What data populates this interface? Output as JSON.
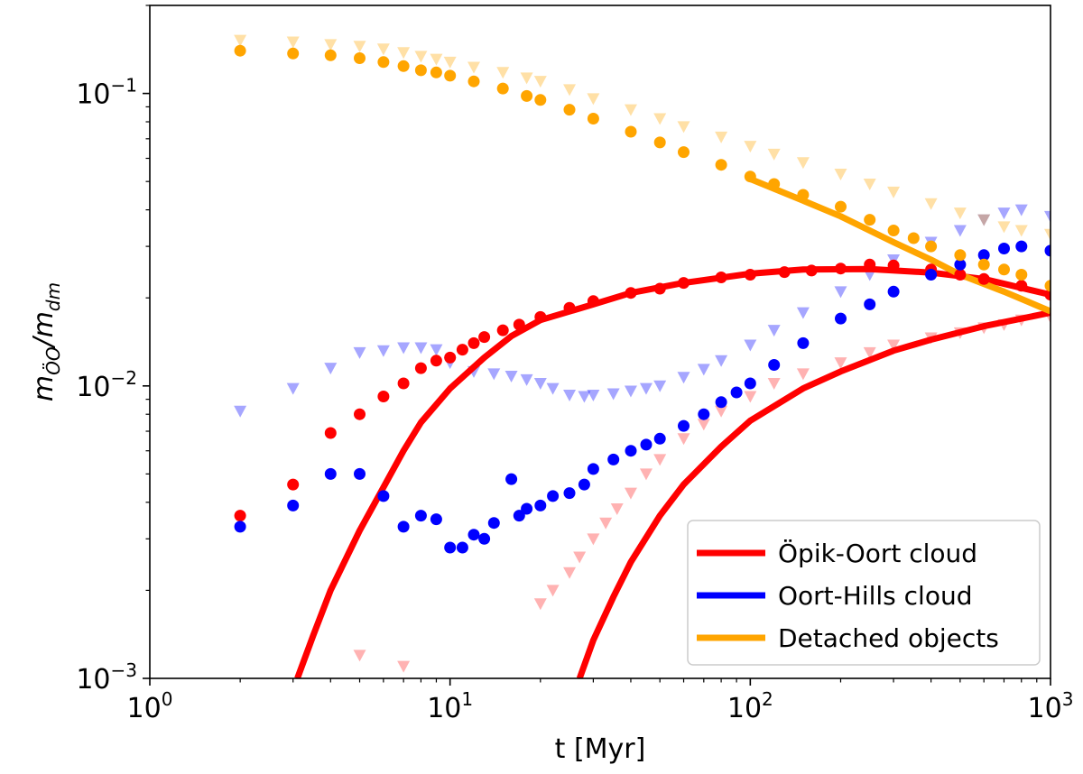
{
  "chart_data": {
    "type": "scatter",
    "xscale": "log",
    "yscale": "log",
    "xlim": [
      1,
      1000
    ],
    "ylim": [
      0.001,
      0.2
    ],
    "xlabel": "t [Myr]",
    "ylabel_main": "m",
    "ylabel_sub_main": "ÖO",
    "ylabel_slash": "/m",
    "ylabel_sub_denominator": "dm",
    "xticks": [
      {
        "value": 1,
        "base": "10",
        "exp": "0"
      },
      {
        "value": 10,
        "base": "10",
        "exp": "1"
      },
      {
        "value": 100,
        "base": "10",
        "exp": "2"
      },
      {
        "value": 1000,
        "base": "10",
        "exp": "3"
      }
    ],
    "yticks": [
      {
        "value": 0.001,
        "base": "10",
        "exp": "−3"
      },
      {
        "value": 0.01,
        "base": "10",
        "exp": "−2"
      },
      {
        "value": 0.1,
        "base": "10",
        "exp": "−1"
      }
    ],
    "legend": {
      "position": "lower-right",
      "entries": [
        {
          "label": "Öpik-Oort cloud",
          "color": "#ff0000"
        },
        {
          "label": "Oort-Hills cloud",
          "color": "#0000ff"
        },
        {
          "label": "Detached objects",
          "color": "#ffa500"
        }
      ]
    },
    "series": [
      {
        "name": "Öpik-Oort cloud fit",
        "kind": "line",
        "color": "#ff0000",
        "x": [
          3.1,
          3.5,
          4,
          5,
          6,
          7,
          8,
          10,
          13,
          16,
          20,
          30,
          40,
          60,
          100,
          150,
          250,
          400,
          600,
          1000
        ],
        "y": [
          0.001,
          0.0014,
          0.002,
          0.0032,
          0.0045,
          0.006,
          0.0075,
          0.0098,
          0.0125,
          0.0148,
          0.0168,
          0.019,
          0.0208,
          0.0225,
          0.0242,
          0.025,
          0.0251,
          0.0244,
          0.0232,
          0.0205
        ]
      },
      {
        "name": "Öpik-Oort cloud late fit",
        "kind": "line",
        "color": "#ff0000",
        "x": [
          27,
          30,
          35,
          40,
          50,
          60,
          80,
          100,
          150,
          200,
          300,
          400,
          600,
          1000
        ],
        "y": [
          0.001,
          0.00135,
          0.0019,
          0.0025,
          0.0036,
          0.0046,
          0.0062,
          0.0076,
          0.0098,
          0.0112,
          0.0132,
          0.0144,
          0.016,
          0.0178
        ]
      },
      {
        "name": "Detached objects fit",
        "kind": "line",
        "color": "#ffa500",
        "x": [
          100,
          150,
          200,
          300,
          400,
          500,
          700,
          1000
        ],
        "y": [
          0.051,
          0.043,
          0.038,
          0.031,
          0.027,
          0.024,
          0.021,
          0.018
        ]
      },
      {
        "name": "Öpik-Oort cloud (circles)",
        "kind": "circle",
        "color": "#ff0000",
        "opacity": 1,
        "x": [
          2,
          3,
          4,
          5,
          6,
          7,
          8,
          9,
          10,
          11,
          12,
          13,
          15,
          17,
          20,
          25,
          30,
          40,
          50,
          60,
          80,
          100,
          130,
          160,
          200,
          250,
          300,
          400,
          500,
          600,
          800,
          1000
        ],
        "y": [
          0.0036,
          0.0046,
          0.0069,
          0.008,
          0.0092,
          0.0102,
          0.0115,
          0.0122,
          0.0125,
          0.0133,
          0.014,
          0.0147,
          0.0155,
          0.0162,
          0.0172,
          0.0185,
          0.0195,
          0.0208,
          0.0215,
          0.0225,
          0.0235,
          0.024,
          0.0245,
          0.0248,
          0.0252,
          0.026,
          0.0258,
          0.025,
          0.024,
          0.0232,
          0.022,
          0.0205
        ]
      },
      {
        "name": "Oort-Hills cloud (circles)",
        "kind": "circle",
        "color": "#0000ff",
        "opacity": 1,
        "x": [
          2,
          3,
          4,
          5,
          6,
          7,
          8,
          9,
          10,
          11,
          12,
          13,
          14,
          16,
          17,
          18,
          20,
          22,
          25,
          28,
          30,
          35,
          40,
          45,
          50,
          60,
          70,
          80,
          90,
          100,
          120,
          150,
          200,
          250,
          300,
          400,
          500,
          600,
          700,
          800,
          1000
        ],
        "y": [
          0.0033,
          0.0039,
          0.005,
          0.005,
          0.0042,
          0.0033,
          0.0036,
          0.0035,
          0.0028,
          0.0028,
          0.0031,
          0.003,
          0.0034,
          0.0048,
          0.0036,
          0.0038,
          0.0039,
          0.0042,
          0.0043,
          0.0046,
          0.0052,
          0.0056,
          0.006,
          0.0063,
          0.0066,
          0.0073,
          0.008,
          0.0088,
          0.0095,
          0.0102,
          0.0118,
          0.014,
          0.017,
          0.019,
          0.021,
          0.024,
          0.026,
          0.028,
          0.0295,
          0.03,
          0.029
        ]
      },
      {
        "name": "Detached objects (circles)",
        "kind": "circle",
        "color": "#ffa500",
        "opacity": 1,
        "x": [
          2,
          3,
          4,
          5,
          6,
          7,
          8,
          9,
          10,
          12,
          15,
          18,
          20,
          25,
          30,
          40,
          50,
          60,
          80,
          100,
          120,
          150,
          200,
          250,
          300,
          350,
          400,
          500,
          600,
          700,
          800,
          1000
        ],
        "y": [
          0.14,
          0.137,
          0.135,
          0.132,
          0.128,
          0.124,
          0.12,
          0.118,
          0.115,
          0.11,
          0.104,
          0.098,
          0.095,
          0.088,
          0.082,
          0.074,
          0.068,
          0.063,
          0.057,
          0.052,
          0.049,
          0.045,
          0.041,
          0.037,
          0.034,
          0.032,
          0.03,
          0.028,
          0.026,
          0.025,
          0.024,
          0.022
        ]
      },
      {
        "name": "Öpik-Oort cloud (triangles)",
        "kind": "triangle",
        "color": "#ff0000",
        "opacity": 0.3,
        "x": [
          5,
          7,
          20,
          22,
          25,
          27,
          30,
          33,
          36,
          40,
          45,
          50,
          60,
          70,
          80,
          100,
          120,
          150,
          200,
          250,
          300,
          400,
          500,
          600,
          700,
          800,
          1000
        ],
        "y": [
          0.0012,
          0.0011,
          0.0018,
          0.002,
          0.0023,
          0.0026,
          0.003,
          0.0034,
          0.0038,
          0.0043,
          0.005,
          0.0056,
          0.0066,
          0.0074,
          0.0082,
          0.0092,
          0.0102,
          0.011,
          0.012,
          0.013,
          0.0138,
          0.0146,
          0.0152,
          0.0158,
          0.0162,
          0.0168,
          0.0172
        ]
      },
      {
        "name": "Oort-Hills cloud (triangles)",
        "kind": "triangle",
        "color": "#0000ff",
        "opacity": 0.35,
        "x": [
          2,
          3,
          4,
          5,
          6,
          7,
          8,
          9,
          10,
          12,
          14,
          16,
          18,
          20,
          22,
          25,
          28,
          30,
          35,
          40,
          45,
          50,
          60,
          70,
          80,
          100,
          120,
          150,
          200,
          250,
          300,
          400,
          500,
          600,
          700,
          800,
          1000
        ],
        "y": [
          0.0082,
          0.0098,
          0.0115,
          0.013,
          0.0132,
          0.0135,
          0.0135,
          0.0133,
          0.012,
          0.0112,
          0.011,
          0.0108,
          0.0105,
          0.0102,
          0.0098,
          0.0093,
          0.0092,
          0.0093,
          0.0094,
          0.0096,
          0.0098,
          0.01,
          0.0107,
          0.0114,
          0.0122,
          0.0138,
          0.0155,
          0.0178,
          0.021,
          0.024,
          0.027,
          0.031,
          0.034,
          0.037,
          0.039,
          0.04,
          0.038
        ]
      },
      {
        "name": "Detached objects (triangles)",
        "kind": "triangle",
        "color": "#ffa500",
        "opacity": 0.35,
        "x": [
          2,
          3,
          4,
          5,
          6,
          7,
          8,
          9,
          10,
          12,
          15,
          18,
          20,
          25,
          30,
          40,
          50,
          60,
          80,
          100,
          120,
          150,
          200,
          250,
          300,
          400,
          500,
          600,
          700,
          800,
          1000
        ],
        "y": [
          0.152,
          0.15,
          0.147,
          0.145,
          0.142,
          0.138,
          0.134,
          0.131,
          0.128,
          0.123,
          0.118,
          0.113,
          0.11,
          0.103,
          0.096,
          0.088,
          0.082,
          0.077,
          0.071,
          0.066,
          0.062,
          0.058,
          0.053,
          0.049,
          0.046,
          0.042,
          0.039,
          0.037,
          0.035,
          0.034,
          0.033
        ]
      }
    ]
  }
}
